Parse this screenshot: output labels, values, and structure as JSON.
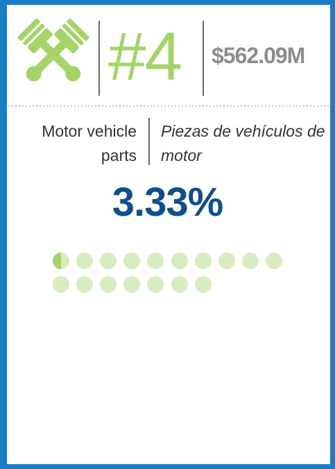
{
  "card": {
    "rank": "#4",
    "amount": "$562.09M",
    "label_en": "Motor vehicle parts",
    "label_es": "Piezas de vehículos de motor",
    "share": "3.33%"
  }
}
